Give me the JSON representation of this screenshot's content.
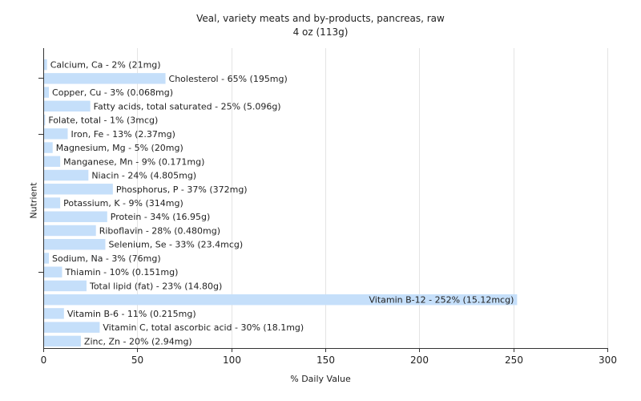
{
  "title": "Veal, variety meats and by-products, pancreas, raw",
  "subtitle": "4 oz (113g)",
  "chart_data": {
    "type": "bar",
    "orientation": "horizontal",
    "title": "Veal, variety meats and by-products, pancreas, raw",
    "subtitle": "4 oz (113g)",
    "xlabel": "% Daily Value",
    "ylabel": "Nutrient",
    "xlim": [
      0,
      300
    ],
    "xticks": [
      0,
      50,
      100,
      150,
      200,
      250,
      300
    ],
    "grid": true,
    "bar_color": "#c5dffa",
    "categories": [
      "Calcium, Ca",
      "Cholesterol",
      "Copper, Cu",
      "Fatty acids, total saturated",
      "Folate, total",
      "Iron, Fe",
      "Magnesium, Mg",
      "Manganese, Mn",
      "Niacin",
      "Phosphorus, P",
      "Potassium, K",
      "Protein",
      "Riboflavin",
      "Selenium, Se",
      "Sodium, Na",
      "Thiamin",
      "Total lipid (fat)",
      "Vitamin B-12",
      "Vitamin B-6",
      "Vitamin C, total ascorbic acid",
      "Zinc, Zn"
    ],
    "values": [
      2,
      65,
      3,
      25,
      1,
      13,
      5,
      9,
      24,
      37,
      9,
      34,
      28,
      33,
      3,
      10,
      23,
      252,
      11,
      30,
      20
    ],
    "labels": [
      "Calcium, Ca - 2% (21mg)",
      "Cholesterol - 65% (195mg)",
      "Copper, Cu - 3% (0.068mg)",
      "Fatty acids, total saturated - 25% (5.096g)",
      "Folate, total - 1% (3mcg)",
      "Iron, Fe - 13% (2.37mg)",
      "Magnesium, Mg - 5% (20mg)",
      "Manganese, Mn - 9% (0.171mg)",
      "Niacin - 24% (4.805mg)",
      "Phosphorus, P - 37% (372mg)",
      "Potassium, K - 9% (314mg)",
      "Protein - 34% (16.95g)",
      "Riboflavin - 28% (0.480mg)",
      "Selenium, Se - 33% (23.4mcg)",
      "Sodium, Na - 3% (76mg)",
      "Thiamin - 10% (0.151mg)",
      "Total lipid (fat) - 23% (14.80g)",
      "Vitamin B-12 - 252% (15.12mcg)",
      "Vitamin B-6 - 11% (0.215mg)",
      "Vitamin C, total ascorbic acid - 30% (18.1mg)",
      "Zinc, Zn - 20% (2.94mg)"
    ]
  }
}
